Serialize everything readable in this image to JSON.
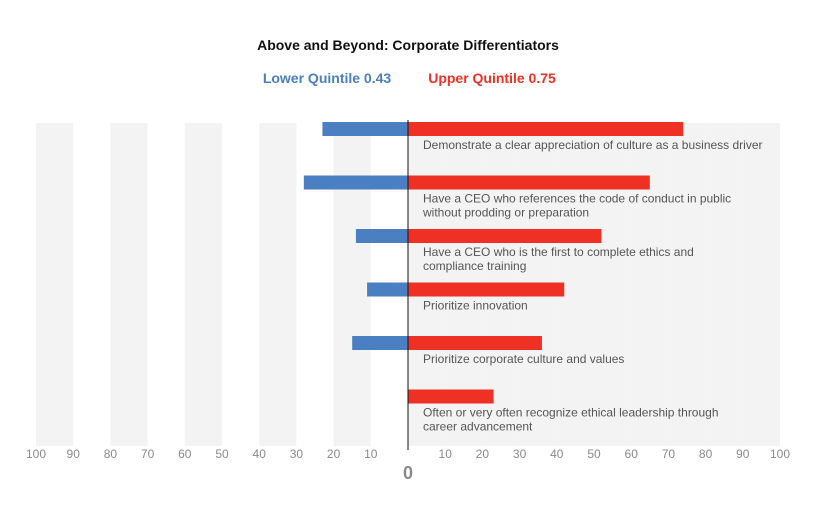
{
  "chart_data": {
    "type": "bar",
    "orientation": "horizontal-diverging",
    "title": "Above and Beyond: Corporate Differentiators",
    "legend": [
      {
        "label": "Lower Quintile 0.43",
        "color": "#4a7fc1",
        "side": "left"
      },
      {
        "label": "Upper Quintile 0.75",
        "color": "#ee3124",
        "side": "right"
      }
    ],
    "legend_placement": "top-center",
    "xlim": [
      -100,
      100
    ],
    "ticks": [
      "100",
      "90",
      "80",
      "70",
      "60",
      "50",
      "40",
      "30",
      "20",
      "10",
      "10",
      "20",
      "30",
      "40",
      "50",
      "60",
      "70",
      "80",
      "90",
      "100"
    ],
    "zero_label": "0",
    "grid": "alternating vertical bands",
    "categories": [
      [
        "Demonstrate a clear appreciation of culture as a business driver"
      ],
      [
        "Have a CEO who references the code of conduct in public",
        "without prodding or preparation"
      ],
      [
        "Have a CEO who is the first to complete ethics and",
        "compliance training"
      ],
      [
        "Prioritize innovation"
      ],
      [
        "Prioritize corporate culture and values"
      ],
      [
        "Often or very often recognize ethical leadership through",
        "career advancement"
      ]
    ],
    "series": [
      {
        "name": "Lower Quintile",
        "color": "#4a7fc1",
        "values": [
          23,
          28,
          14,
          11,
          15,
          0
        ]
      },
      {
        "name": "Upper Quintile",
        "color": "#ee3124",
        "values": [
          74,
          65,
          52,
          42,
          36,
          23
        ]
      }
    ]
  }
}
